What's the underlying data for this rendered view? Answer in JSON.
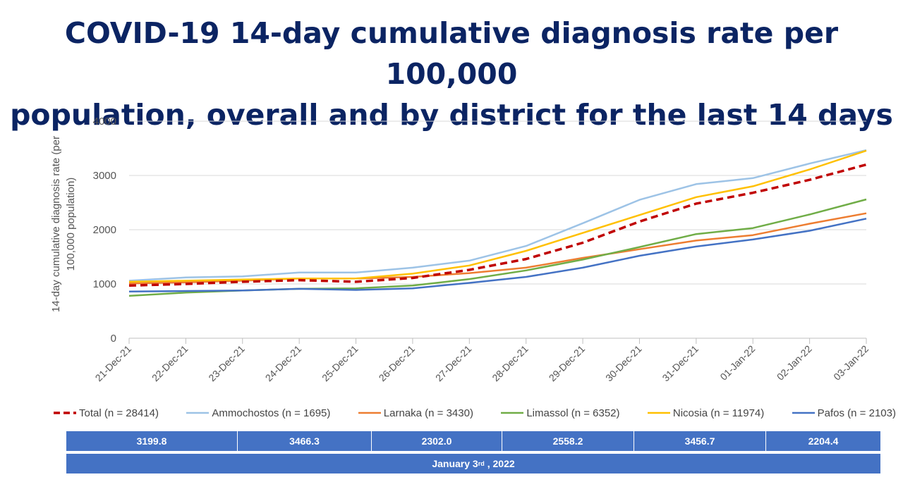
{
  "title": {
    "line1": "COVID-19 14-day cumulative diagnosis rate per 100,000",
    "line2": "population, overall and by district for the last 14 days"
  },
  "chart_data": {
    "type": "line",
    "ylabel_line1": "14-day cumulative diagnosis rate (per",
    "ylabel_line2": "100,000 population)",
    "ylim": [
      0,
      4000
    ],
    "yticks": [
      0,
      1000,
      2000,
      3000,
      4000
    ],
    "grid": true,
    "legend_position": "bottom",
    "categories": [
      "21-Dec-21",
      "22-Dec-21",
      "23-Dec-21",
      "24-Dec-21",
      "25-Dec-21",
      "26-Dec-21",
      "27-Dec-21",
      "28-Dec-21",
      "29-Dec-21",
      "30-Dec-21",
      "31-Dec-21",
      "01-Jan-22",
      "02-Jan-22",
      "03-Jan-22"
    ],
    "series": [
      {
        "name": "Total (n = 28414)",
        "color": "#c00000",
        "dashed": true,
        "values": [
          970,
          1000,
          1040,
          1070,
          1040,
          1110,
          1260,
          1460,
          1760,
          2150,
          2480,
          2680,
          2920,
          3200
        ]
      },
      {
        "name": "Ammochostos (n = 1695)",
        "color": "#9dc3e6",
        "dashed": false,
        "values": [
          1060,
          1120,
          1140,
          1210,
          1210,
          1300,
          1430,
          1700,
          2120,
          2550,
          2840,
          2950,
          3220,
          3466
        ]
      },
      {
        "name": "Larnaka (n = 3430)",
        "color": "#ed7d31",
        "dashed": false,
        "values": [
          1010,
          1030,
          1060,
          1100,
          1100,
          1130,
          1200,
          1300,
          1480,
          1640,
          1800,
          1900,
          2110,
          2302
        ]
      },
      {
        "name": "Limassol (n = 6352)",
        "color": "#70ad47",
        "dashed": false,
        "values": [
          780,
          840,
          880,
          910,
          920,
          970,
          1090,
          1250,
          1450,
          1680,
          1920,
          2030,
          2280,
          2558
        ]
      },
      {
        "name": "Nicosia (n = 11974)",
        "color": "#ffc000",
        "dashed": false,
        "values": [
          1040,
          1060,
          1080,
          1100,
          1100,
          1190,
          1340,
          1610,
          1940,
          2270,
          2600,
          2800,
          3110,
          3457
        ]
      },
      {
        "name": "Pafos (n = 2103)",
        "color": "#4472c4",
        "dashed": false,
        "values": [
          860,
          870,
          880,
          910,
          890,
          920,
          1020,
          1130,
          1300,
          1520,
          1690,
          1820,
          1980,
          2204
        ]
      }
    ]
  },
  "summary": {
    "values": [
      "3199.8",
      "3466.3",
      "2302.0",
      "2558.2",
      "3456.7",
      "2204.4"
    ],
    "date_prefix": "January 3",
    "date_suffix": "rd",
    "date_rest": ", 2022"
  }
}
